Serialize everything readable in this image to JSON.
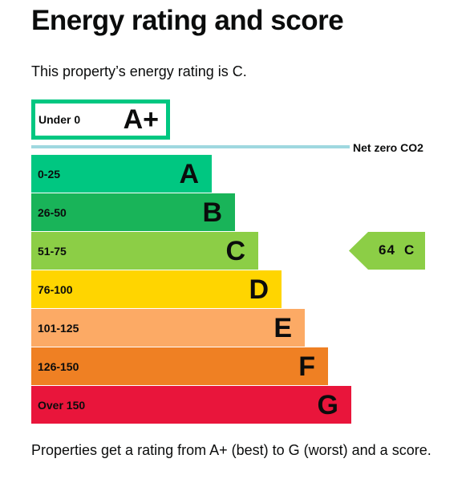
{
  "header": {
    "title": "Energy rating and score"
  },
  "summary": "This property’s energy rating is C.",
  "footer_note": "Properties get a rating from A+ (best) to G (worst) and a score.",
  "net_zero_label": "Net zero CO2",
  "current": {
    "score": "64",
    "rating": "C"
  },
  "colors": {
    "A+": "#00c781",
    "A": "#00c781",
    "B": "#19b459",
    "C": "#8cce46",
    "D": "#ffd500",
    "E": "#fcaa65",
    "F": "#ef8023",
    "G": "#e9153b",
    "net_zero_line": "#9fd8e0"
  },
  "chart_data": {
    "type": "bar",
    "title": "Energy rating and score",
    "categories": [
      "A+",
      "A",
      "B",
      "C",
      "D",
      "E",
      "F",
      "G"
    ],
    "ranges": [
      "Under 0",
      "0-25",
      "26-50",
      "51-75",
      "76-100",
      "101-125",
      "126-150",
      "Over 150"
    ],
    "values": [
      1,
      2,
      3,
      4,
      5,
      6,
      7,
      8
    ],
    "annotations": [
      {
        "text": "Net zero CO2"
      },
      {
        "text": "64 C",
        "category": "C",
        "value": 64
      }
    ]
  }
}
